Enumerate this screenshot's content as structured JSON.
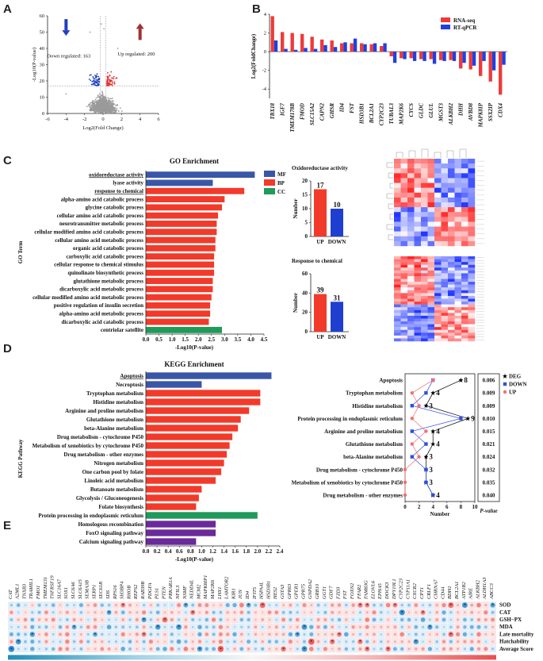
{
  "panels": {
    "a": "A",
    "b": "B",
    "c": "C",
    "d": "D",
    "e": "E"
  },
  "volcano": {
    "xlabel": "Log2(Fold Change)",
    "ylabel": "-Log10(P-value)",
    "down_label": "Down regulated: 163",
    "up_label": "Up regulated: 200",
    "xticks": [
      "-6",
      "-4",
      "-2",
      "0",
      "2",
      "4",
      "6"
    ],
    "yticks": [
      "0",
      "10",
      "20",
      "30",
      "40",
      "50",
      "60"
    ],
    "colors": {
      "down": "#1f3fbf",
      "up": "#e03030",
      "ns": "#9a9a9a"
    }
  },
  "chart_data": [
    {
      "type": "bar",
      "id": "validation",
      "ylabel": "Log2(FoldChange)",
      "ylim": [
        -5,
        4
      ],
      "categories": [
        "TBX18",
        "IGF7",
        "TMEM178B",
        "FMOD",
        "SLC15A2",
        "CAPN2",
        "GHSR",
        "ID4",
        "FST",
        "HSD3B1",
        "BCL2A1",
        "CYP2C23",
        "TUBAL3",
        "MAP2K6",
        "CYCS",
        "GLDC",
        "GLUL",
        "MGST3",
        "ALKBH2",
        "DHH",
        "AVBD8",
        "MAPK8IP",
        "SSX2IP",
        "CDX4"
      ],
      "series": [
        {
          "name": "RNA-seq",
          "color": "#ee3a3a",
          "values": [
            3.8,
            2.1,
            2.0,
            1.9,
            1.6,
            1.3,
            1.2,
            0.9,
            0.9,
            0.9,
            0.8,
            0.6,
            -0.5,
            -0.7,
            -0.7,
            -0.8,
            -0.8,
            -0.9,
            -0.9,
            -1.8,
            -1.9,
            -2.6,
            -3.2,
            -4.6
          ]
        },
        {
          "name": "RT-qPCR",
          "color": "#2040e0",
          "values": [
            1.2,
            0.3,
            0.2,
            0.4,
            0.3,
            0.7,
            0.5,
            1.0,
            1.4,
            0.8,
            0.9,
            0.9,
            -1.2,
            -0.8,
            -1.0,
            -1.0,
            -1.3,
            -1.0,
            -1.0,
            -1.2,
            -1.5,
            -1.0,
            -2.0,
            -1.4
          ]
        }
      ]
    },
    {
      "type": "bar",
      "id": "go",
      "orientation": "horizontal",
      "title": "GO Enrichment",
      "ylabel": "GO Term",
      "xlabel": "-Log10(P-value)",
      "xlim": [
        0,
        4.5
      ],
      "xticks": [
        "0.0",
        "0.5",
        "1.0",
        "1.5",
        "2.0",
        "2.5",
        "3.0",
        "3.5",
        "4.0",
        "4.5"
      ],
      "legend": [
        {
          "name": "MF",
          "color": "#3a56a8"
        },
        {
          "name": "BP",
          "color": "#f23a2a"
        },
        {
          "name": "CC",
          "color": "#1f9a5a"
        }
      ],
      "categories": [
        "oxidoreductase activity",
        "lyase activity",
        "response to chemical",
        "alpha-amino acid catabolic process",
        "glycine catabolic process",
        "cellular amino acid catabolic process",
        "neurotransmitter metabolic process",
        "cellular modified amino acid catabolic process",
        "cellular amino acid metabolic process",
        "organic acid catabolic process",
        "carboxylic acid catabolic process",
        "cellular response to chemical stimulus",
        "quinolinate biosynthetic process",
        "glutathione metabolic process",
        "dicarboxylic acid metabolic process",
        "cellular modified amino acid metabolic process",
        "positive regulation of insulin secretion",
        "alpha-amino acid metabolic process",
        "dicarboxylic acid catabolic process",
        "centriolar satellite"
      ],
      "values": [
        4.15,
        2.55,
        3.75,
        3.0,
        2.9,
        2.75,
        2.7,
        2.7,
        2.65,
        2.65,
        2.6,
        2.6,
        2.6,
        2.55,
        2.55,
        2.5,
        2.45,
        2.45,
        2.4,
        2.9
      ],
      "groups": [
        "MF",
        "MF",
        "BP",
        "BP",
        "BP",
        "BP",
        "BP",
        "BP",
        "BP",
        "BP",
        "BP",
        "BP",
        "BP",
        "BP",
        "BP",
        "BP",
        "BP",
        "BP",
        "BP",
        "CC"
      ],
      "highlight": [
        "oxidoreductase activity",
        "response to chemical"
      ]
    },
    {
      "type": "bar",
      "id": "oxidoreductase",
      "title": "Oxidoreductase activity",
      "ylabel": "Number",
      "categories": [
        "UP",
        "DOWN"
      ],
      "values": [
        17,
        10
      ],
      "ylim": [
        0,
        20
      ],
      "yticks": [
        "0",
        "5",
        "10",
        "15",
        "20"
      ]
    },
    {
      "type": "bar",
      "id": "chemical",
      "title": "Response to chemical",
      "ylabel": "Number",
      "categories": [
        "UP",
        "DOWN"
      ],
      "values": [
        39,
        31
      ],
      "ylim": [
        0,
        60
      ],
      "yticks": [
        "0",
        "20",
        "40",
        "60"
      ]
    },
    {
      "type": "bar",
      "id": "kegg",
      "orientation": "horizontal",
      "title": "KEGG Enrichment",
      "ylabel": "KEGG Pathway",
      "xlabel": "-Log10(P-value)",
      "xlim": [
        0,
        2.4
      ],
      "xticks": [
        "0.0",
        "0.2",
        "0.4",
        "0.6",
        "0.8",
        "1.0",
        "1.2",
        "1.4",
        "1.6",
        "1.8",
        "2.0",
        "2.2",
        "2.4"
      ],
      "categories": [
        "Apoptosis",
        "Necroptosis",
        "Tryptophan metabolism",
        "Histidine metabolism",
        "Arginine and proline metabolism",
        "Glutathione metabolism",
        "beta-Alanine metabolism",
        "Drug metabolism - cytochrome P450",
        "Metabolism of xenobiotics by cytochrome P450",
        "Drug metabolism - other enzymes",
        "Nitrogen metabolism",
        "One carbon pool by folate",
        "Linoleic acid metabolism",
        "Butanoate metabolism",
        "Glycolysis / Gluconeogenesis",
        "Folate biosynthesis",
        "Protein processing in endoplasmic reticulum",
        "Homologous recombination",
        "FoxO signaling pathway",
        "Calcium signaling pathway"
      ],
      "values": [
        2.25,
        1.0,
        2.05,
        2.05,
        1.85,
        1.7,
        1.65,
        1.55,
        1.5,
        1.45,
        1.4,
        1.35,
        1.25,
        1.0,
        0.95,
        0.9,
        2.0,
        1.25,
        1.25,
        0.9
      ],
      "colors": [
        "#3a56a8",
        "#3a56a8",
        "#f23a2a",
        "#f23a2a",
        "#f23a2a",
        "#f23a2a",
        "#f23a2a",
        "#f23a2a",
        "#f23a2a",
        "#f23a2a",
        "#f23a2a",
        "#f23a2a",
        "#f23a2a",
        "#f23a2a",
        "#f23a2a",
        "#f23a2a",
        "#1f9a5a",
        "#6a2a9a",
        "#6a2a9a",
        "#6a2a9a"
      ],
      "highlight": [
        "Apoptosis"
      ]
    },
    {
      "type": "line",
      "id": "kegg_counts",
      "xlabel": "Number",
      "xlim": [
        0,
        10
      ],
      "xticks": [
        "0",
        "2",
        "4",
        "6",
        "8",
        "10"
      ],
      "categories": [
        "Apoptosis",
        "Tryptophan metabolism",
        "Histidine metabolism",
        "Protein processing in endoplasmic reticulum",
        "Arginine and proline metabolism",
        "Glutathione metabolism",
        "beta-Alanine metabolism",
        "Drug metabolism - cytochrome P450",
        "Metabolism of xenobiotics by cytochrome P450",
        "Drug metabolism - other enzymes"
      ],
      "series": [
        {
          "name": "DEG",
          "marker": "star",
          "color": "#000000",
          "values": [
            8,
            4,
            3,
            9,
            4,
            4,
            3,
            3,
            3,
            4
          ]
        },
        {
          "name": "DOWN",
          "marker": "square",
          "color": "#2f4fe0",
          "values": [
            4,
            3,
            1,
            8,
            1,
            3,
            1,
            3,
            3,
            4
          ]
        },
        {
          "name": "UP",
          "marker": "circle",
          "color": "#f07070",
          "values": [
            4,
            1,
            2,
            1,
            3,
            1,
            2,
            0,
            0,
            0
          ]
        }
      ],
      "pvalues": [
        "0.006",
        "0.009",
        "0.009",
        "0.010",
        "0.015",
        "0.021",
        "0.024",
        "0.032",
        "0.035",
        "0.040"
      ],
      "pvalue_label": "P-value"
    },
    {
      "type": "heatmap",
      "id": "correlation",
      "rows": [
        "SOD",
        "CAT",
        "GSH−PX",
        "MDA",
        "Late mortality",
        "Hatchability",
        "Average Score"
      ],
      "columns": [
        "CAT",
        "A2ML1",
        "TNXB3",
        "TRAMIL1",
        "FMO1",
        "TMEM131",
        "TNFRSF19",
        "SLC16A7",
        "SOX1",
        "SLC6A6",
        "SLC6A15",
        "SEMA3B",
        "SERP1",
        "SEC61B",
        "SDS",
        "RPS16",
        "SH3BP4",
        "RHOB",
        "REPS2",
        "RAB39B",
        "PDGFA",
        "PLS1",
        "PTEN",
        "PRKAR1A",
        "NFIL3",
        "NSMF",
        "NEDD4L",
        "MCM2",
        "MAPK8IP1",
        "MAP2K6",
        "LHX1",
        "LAMTOR2",
        "KIR1",
        "JUN",
        "ID4",
        "IFIT5",
        "HSPA4L",
        "HSD3B1",
        "HES2",
        "GSTA3",
        "GPR63",
        "GPER1",
        "GPR75",
        "GNPDA2",
        "GRB10",
        "GGT1",
        "GDF7",
        "FZD3",
        "FST",
        "FOXN2",
        "FFAR2",
        "FAM83G",
        "ELOVL6",
        "EPHA5",
        "DOCK3",
        "DPY19L1",
        "CYP2C23",
        "CYP11A1",
        "CXCR2",
        "CPT1",
        "CRLF1",
        "CHRNA7",
        "CD44",
        "BDH1",
        "BCL2A1",
        "ATP1B2",
        "AIRE",
        "ALKBH2",
        "ALDH1A3",
        "ABCC3"
      ],
      "scale_ticks": [
        "-0.88",
        "-0.7",
        "-0.53",
        "-0.35",
        "-0.17",
        "0",
        "0.18",
        "0.36",
        "0.53",
        "0.71",
        "0.89"
      ],
      "range": [
        -0.88,
        0.89
      ]
    }
  ]
}
